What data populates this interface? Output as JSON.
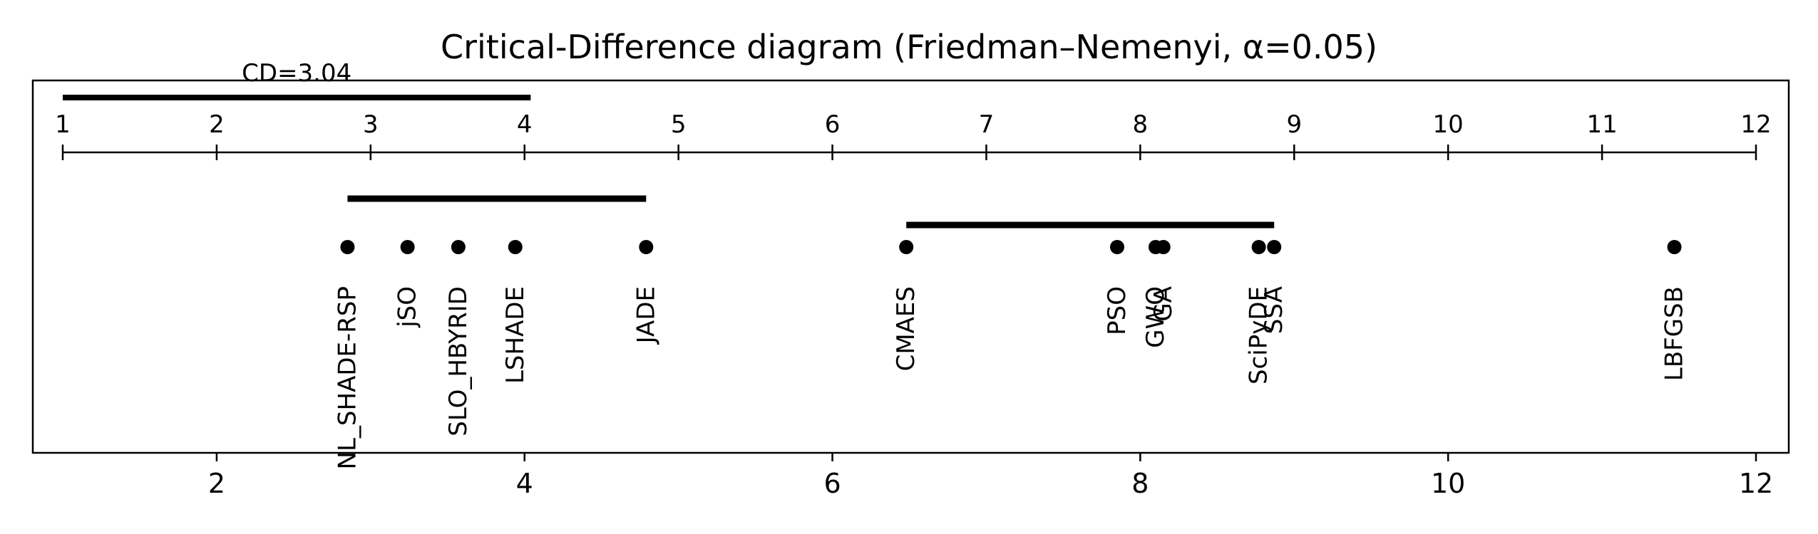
{
  "chart_data": {
    "type": "scatter",
    "title": "Critical-Difference diagram (Friedman–Nemenyi, α=0.05)",
    "cd_label": "CD=3.04",
    "cd_value": 3.04,
    "cd_bar": [
      1,
      4.04
    ],
    "top_axis_ticks": [
      "1",
      "2",
      "3",
      "4",
      "5",
      "6",
      "7",
      "8",
      "9",
      "10",
      "11",
      "12"
    ],
    "bottom_axis_ticks": [
      "2",
      "4",
      "6",
      "8",
      "10",
      "12"
    ],
    "xlim": [
      0.9,
      12.1
    ],
    "points": [
      {
        "name": "NL_SHADE-RSP",
        "rank": 2.85
      },
      {
        "name": "jSO",
        "rank": 3.24
      },
      {
        "name": "SLO_HBYRID",
        "rank": 3.57
      },
      {
        "name": "LSHADE",
        "rank": 3.94
      },
      {
        "name": "JADE",
        "rank": 4.79
      },
      {
        "name": "CMAES",
        "rank": 6.48
      },
      {
        "name": "PSO",
        "rank": 7.85
      },
      {
        "name": "GWO",
        "rank": 8.1
      },
      {
        "name": "GA",
        "rank": 8.15
      },
      {
        "name": "SciPyDE",
        "rank": 8.77
      },
      {
        "name": "SSA",
        "rank": 8.87
      },
      {
        "name": "LBFGSB",
        "rank": 11.47
      }
    ],
    "cliques": [
      {
        "from": 2.85,
        "to": 4.79
      },
      {
        "from": 6.48,
        "to": 8.87
      }
    ],
    "grid": false
  }
}
